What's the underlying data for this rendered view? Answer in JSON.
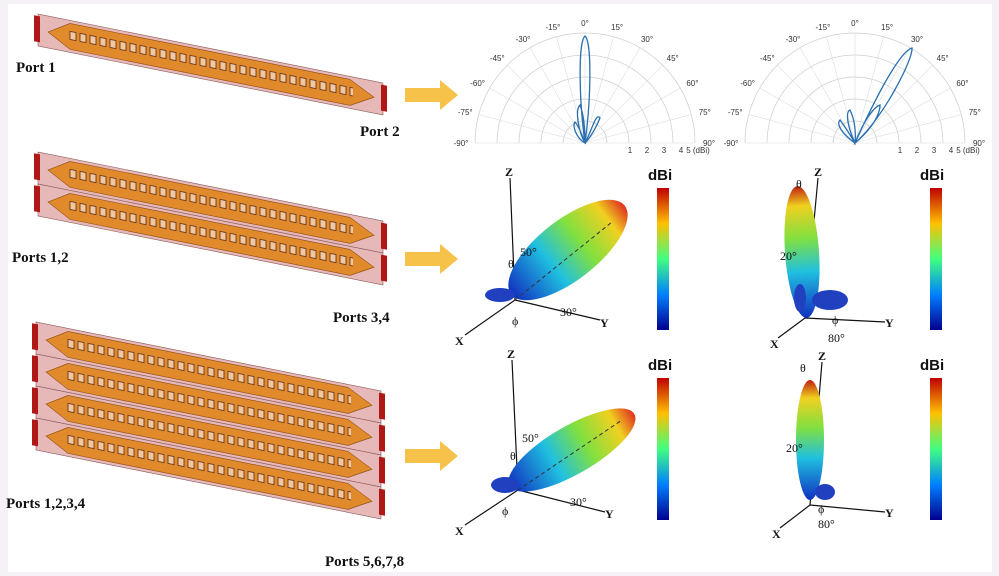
{
  "rows": [
    {
      "left_label": "Port 1",
      "right_label": "Port 2"
    },
    {
      "left_label": "Ports 1,2",
      "right_label": "Ports 3,4"
    },
    {
      "left_label": "Ports 1,2,3,4",
      "right_label": "Ports 5,6,7,8"
    }
  ],
  "polar": {
    "angle_labels": [
      "-90°",
      "-75°",
      "-60°",
      "-45°",
      "-30°",
      "-15°",
      "0°",
      "15°",
      "30°",
      "45°",
      "60°",
      "75°",
      "90°"
    ],
    "radial_labels": [
      "1",
      "2",
      "3",
      "4",
      "5 (dBi)"
    ]
  },
  "patterns": [
    {
      "z": "Z",
      "x": "X",
      "y": "Y",
      "theta": "θ",
      "phi": "ϕ",
      "elevation": "50°",
      "azimuth": "30°",
      "colorbar": "dBi"
    },
    {
      "z": "Z",
      "x": "X",
      "y": "Y",
      "theta": "θ",
      "phi": "ϕ",
      "elevation": "20°",
      "azimuth": "80°",
      "colorbar": "dBi"
    },
    {
      "z": "Z",
      "x": "X",
      "y": "Y",
      "theta": "θ",
      "phi": "ϕ",
      "elevation": "50°",
      "azimuth": "30°",
      "colorbar": "dBi"
    },
    {
      "z": "Z",
      "x": "X",
      "y": "Y",
      "theta": "θ",
      "phi": "ϕ",
      "elevation": "20°",
      "azimuth": "80°",
      "colorbar": "dBi"
    }
  ]
}
